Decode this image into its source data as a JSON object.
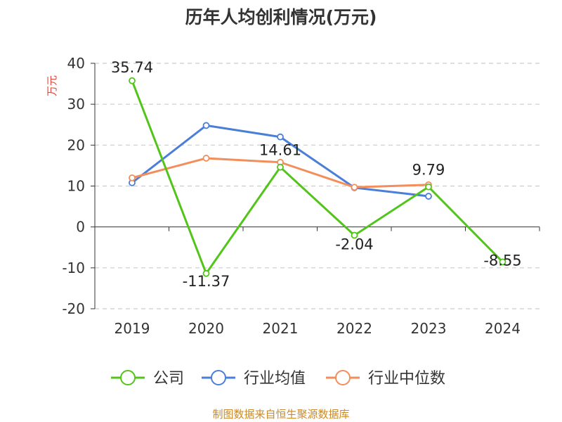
{
  "chart_data": {
    "type": "line",
    "title": "历年人均创利情况(万元)",
    "ylabel": "万元",
    "ylim": [
      -20,
      40
    ],
    "yticks": [
      40,
      30,
      20,
      10,
      0,
      -10,
      -20
    ],
    "categories": [
      "2019",
      "2020",
      "2021",
      "2022",
      "2023",
      "2024"
    ],
    "grid": true,
    "legend_position": "bottom",
    "series": [
      {
        "name": "公司",
        "color": "#52c41a",
        "values": [
          35.74,
          -11.37,
          14.61,
          -2.04,
          9.79,
          -8.55
        ],
        "labels": [
          "35.74",
          "-11.37",
          "14.61",
          "-2.04",
          "9.79",
          "-8.55"
        ]
      },
      {
        "name": "行业均值",
        "color": "#4a7fd9",
        "values": [
          10.8,
          24.8,
          22.0,
          9.6,
          7.5,
          null
        ]
      },
      {
        "name": "行业中位数",
        "color": "#f28e5b",
        "values": [
          12.0,
          16.8,
          15.8,
          9.7,
          10.3,
          null
        ]
      }
    ]
  },
  "source": "制图数据来自恒生聚源数据库"
}
